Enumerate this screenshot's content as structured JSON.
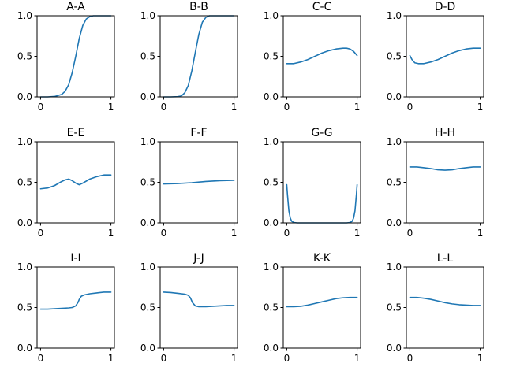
{
  "chart_data": [
    {
      "type": "line",
      "title": "A-A",
      "xlim": [
        0,
        1
      ],
      "ylim": [
        0,
        1
      ],
      "x_ticks": [
        0,
        1
      ],
      "y_ticks": [
        0.0,
        0.5,
        1.0
      ],
      "x_tick_labels": [
        "0",
        "1"
      ],
      "y_tick_labels": [
        "0.0",
        "0.5",
        "1.0"
      ],
      "series": [
        {
          "color": "#1f77b4",
          "x": [
            0,
            0.1,
            0.2,
            0.3,
            0.35,
            0.4,
            0.45,
            0.5,
            0.55,
            0.6,
            0.65,
            0.7,
            0.75,
            0.8,
            0.9,
            1.0
          ],
          "y": [
            0.0,
            0.0,
            0.005,
            0.03,
            0.07,
            0.15,
            0.3,
            0.5,
            0.72,
            0.88,
            0.96,
            0.99,
            1.0,
            1.0,
            1.0,
            1.0
          ]
        }
      ]
    },
    {
      "type": "line",
      "title": "B-B",
      "xlim": [
        0,
        1
      ],
      "ylim": [
        0,
        1
      ],
      "x_ticks": [
        0,
        1
      ],
      "y_ticks": [
        0.0,
        0.5,
        1.0
      ],
      "x_tick_labels": [
        "0",
        "1"
      ],
      "y_tick_labels": [
        "0.0",
        "0.5",
        "1.0"
      ],
      "series": [
        {
          "color": "#1f77b4",
          "x": [
            0,
            0.1,
            0.2,
            0.25,
            0.3,
            0.35,
            0.4,
            0.45,
            0.5,
            0.55,
            0.6,
            0.65,
            0.7,
            0.8,
            0.9,
            1.0
          ],
          "y": [
            0.0,
            0.0,
            0.003,
            0.01,
            0.05,
            0.14,
            0.32,
            0.55,
            0.77,
            0.92,
            0.98,
            1.0,
            1.0,
            1.0,
            1.0,
            1.0
          ]
        }
      ]
    },
    {
      "type": "line",
      "title": "C-C",
      "xlim": [
        0,
        1
      ],
      "ylim": [
        0,
        1
      ],
      "x_ticks": [
        0,
        1
      ],
      "y_ticks": [
        0.0,
        0.5,
        1.0
      ],
      "x_tick_labels": [
        "0",
        "1"
      ],
      "y_tick_labels": [
        "0.0",
        "0.5",
        "1.0"
      ],
      "series": [
        {
          "color": "#1f77b4",
          "x": [
            0,
            0.1,
            0.2,
            0.3,
            0.4,
            0.5,
            0.6,
            0.7,
            0.8,
            0.85,
            0.9,
            0.95,
            1.0
          ],
          "y": [
            0.41,
            0.41,
            0.43,
            0.46,
            0.5,
            0.54,
            0.57,
            0.59,
            0.6,
            0.6,
            0.59,
            0.56,
            0.51
          ]
        }
      ]
    },
    {
      "type": "line",
      "title": "D-D",
      "xlim": [
        0,
        1
      ],
      "ylim": [
        0,
        1
      ],
      "x_ticks": [
        0,
        1
      ],
      "y_ticks": [
        0.0,
        0.5,
        1.0
      ],
      "x_tick_labels": [
        "0",
        "1"
      ],
      "y_tick_labels": [
        "0.0",
        "0.5",
        "1.0"
      ],
      "series": [
        {
          "color": "#1f77b4",
          "x": [
            0,
            0.03,
            0.07,
            0.12,
            0.2,
            0.3,
            0.4,
            0.5,
            0.6,
            0.7,
            0.8,
            0.9,
            1.0
          ],
          "y": [
            0.51,
            0.46,
            0.42,
            0.41,
            0.41,
            0.43,
            0.46,
            0.5,
            0.54,
            0.57,
            0.59,
            0.6,
            0.6
          ]
        }
      ]
    },
    {
      "type": "line",
      "title": "E-E",
      "xlim": [
        0,
        1
      ],
      "ylim": [
        0,
        1
      ],
      "x_ticks": [
        0,
        1
      ],
      "y_ticks": [
        0.0,
        0.5,
        1.0
      ],
      "x_tick_labels": [
        "0",
        "1"
      ],
      "y_tick_labels": [
        "0.0",
        "0.5",
        "1.0"
      ],
      "series": [
        {
          "color": "#1f77b4",
          "x": [
            0,
            0.1,
            0.2,
            0.3,
            0.35,
            0.4,
            0.45,
            0.5,
            0.55,
            0.6,
            0.7,
            0.8,
            0.9,
            1.0
          ],
          "y": [
            0.42,
            0.43,
            0.46,
            0.51,
            0.53,
            0.54,
            0.52,
            0.49,
            0.47,
            0.49,
            0.54,
            0.57,
            0.59,
            0.59
          ]
        }
      ]
    },
    {
      "type": "line",
      "title": "F-F",
      "xlim": [
        0,
        1
      ],
      "ylim": [
        0,
        1
      ],
      "x_ticks": [
        0,
        1
      ],
      "y_ticks": [
        0.0,
        0.5,
        1.0
      ],
      "x_tick_labels": [
        "0",
        "1"
      ],
      "y_tick_labels": [
        "0.0",
        "0.5",
        "1.0"
      ],
      "series": [
        {
          "color": "#1f77b4",
          "x": [
            0,
            0.2,
            0.4,
            0.6,
            0.8,
            1.0
          ],
          "y": [
            0.48,
            0.485,
            0.495,
            0.51,
            0.52,
            0.525
          ]
        }
      ]
    },
    {
      "type": "line",
      "title": "G-G",
      "xlim": [
        0,
        1
      ],
      "ylim": [
        0,
        1
      ],
      "x_ticks": [
        0,
        1
      ],
      "y_ticks": [
        0.0,
        0.5,
        1.0
      ],
      "x_tick_labels": [
        "0",
        "1"
      ],
      "y_tick_labels": [
        "0.0",
        "0.5",
        "1.0"
      ],
      "series": [
        {
          "color": "#1f77b4",
          "x": [
            0,
            0.01,
            0.03,
            0.05,
            0.07,
            0.1,
            0.15,
            0.3,
            0.5,
            0.7,
            0.85,
            0.9,
            0.93,
            0.95,
            0.97,
            0.99,
            1.0
          ],
          "y": [
            0.47,
            0.35,
            0.15,
            0.06,
            0.02,
            0.005,
            0.0,
            0.0,
            0.0,
            0.0,
            0.0,
            0.005,
            0.02,
            0.06,
            0.15,
            0.35,
            0.47
          ]
        }
      ]
    },
    {
      "type": "line",
      "title": "H-H",
      "xlim": [
        0,
        1
      ],
      "ylim": [
        0,
        1
      ],
      "x_ticks": [
        0,
        1
      ],
      "y_ticks": [
        0.0,
        0.5,
        1.0
      ],
      "x_tick_labels": [
        "0",
        "1"
      ],
      "y_tick_labels": [
        "0.0",
        "0.5",
        "1.0"
      ],
      "series": [
        {
          "color": "#1f77b4",
          "x": [
            0,
            0.1,
            0.2,
            0.3,
            0.4,
            0.5,
            0.6,
            0.7,
            0.8,
            0.9,
            1.0
          ],
          "y": [
            0.69,
            0.69,
            0.68,
            0.67,
            0.655,
            0.65,
            0.655,
            0.67,
            0.68,
            0.69,
            0.69
          ]
        }
      ]
    },
    {
      "type": "line",
      "title": "I-I",
      "xlim": [
        0,
        1
      ],
      "ylim": [
        0,
        1
      ],
      "x_ticks": [
        0,
        1
      ],
      "y_ticks": [
        0.0,
        0.5,
        1.0
      ],
      "x_tick_labels": [
        "0",
        "1"
      ],
      "y_tick_labels": [
        "0.0",
        "0.5",
        "1.0"
      ],
      "series": [
        {
          "color": "#1f77b4",
          "x": [
            0,
            0.1,
            0.2,
            0.3,
            0.4,
            0.45,
            0.5,
            0.53,
            0.55,
            0.58,
            0.62,
            0.7,
            0.8,
            0.9,
            1.0
          ],
          "y": [
            0.48,
            0.48,
            0.485,
            0.49,
            0.495,
            0.5,
            0.52,
            0.56,
            0.6,
            0.64,
            0.655,
            0.67,
            0.68,
            0.69,
            0.69
          ]
        }
      ]
    },
    {
      "type": "line",
      "title": "J-J",
      "xlim": [
        0,
        1
      ],
      "ylim": [
        0,
        1
      ],
      "x_ticks": [
        0,
        1
      ],
      "y_ticks": [
        0.0,
        0.5,
        1.0
      ],
      "x_tick_labels": [
        "0",
        "1"
      ],
      "y_tick_labels": [
        "0.0",
        "0.5",
        "1.0"
      ],
      "series": [
        {
          "color": "#1f77b4",
          "x": [
            0,
            0.1,
            0.2,
            0.3,
            0.35,
            0.38,
            0.41,
            0.45,
            0.5,
            0.6,
            0.7,
            0.8,
            0.9,
            1.0
          ],
          "y": [
            0.69,
            0.685,
            0.675,
            0.665,
            0.65,
            0.62,
            0.56,
            0.52,
            0.51,
            0.51,
            0.515,
            0.52,
            0.525,
            0.525
          ]
        }
      ]
    },
    {
      "type": "line",
      "title": "K-K",
      "xlim": [
        0,
        1
      ],
      "ylim": [
        0,
        1
      ],
      "x_ticks": [
        0,
        1
      ],
      "y_ticks": [
        0.0,
        0.5,
        1.0
      ],
      "x_tick_labels": [
        "0",
        "1"
      ],
      "y_tick_labels": [
        "0.0",
        "0.5",
        "1.0"
      ],
      "series": [
        {
          "color": "#1f77b4",
          "x": [
            0,
            0.1,
            0.2,
            0.3,
            0.4,
            0.5,
            0.6,
            0.7,
            0.8,
            0.9,
            1.0
          ],
          "y": [
            0.51,
            0.51,
            0.515,
            0.53,
            0.55,
            0.57,
            0.59,
            0.61,
            0.62,
            0.625,
            0.625
          ]
        }
      ]
    },
    {
      "type": "line",
      "title": "L-L",
      "xlim": [
        0,
        1
      ],
      "ylim": [
        0,
        1
      ],
      "x_ticks": [
        0,
        1
      ],
      "y_ticks": [
        0.0,
        0.5,
        1.0
      ],
      "x_tick_labels": [
        "0",
        "1"
      ],
      "y_tick_labels": [
        "0.0",
        "0.5",
        "1.0"
      ],
      "series": [
        {
          "color": "#1f77b4",
          "x": [
            0,
            0.1,
            0.2,
            0.3,
            0.4,
            0.5,
            0.6,
            0.7,
            0.8,
            0.9,
            1.0
          ],
          "y": [
            0.625,
            0.625,
            0.615,
            0.6,
            0.58,
            0.56,
            0.545,
            0.535,
            0.53,
            0.525,
            0.525
          ]
        }
      ]
    }
  ]
}
